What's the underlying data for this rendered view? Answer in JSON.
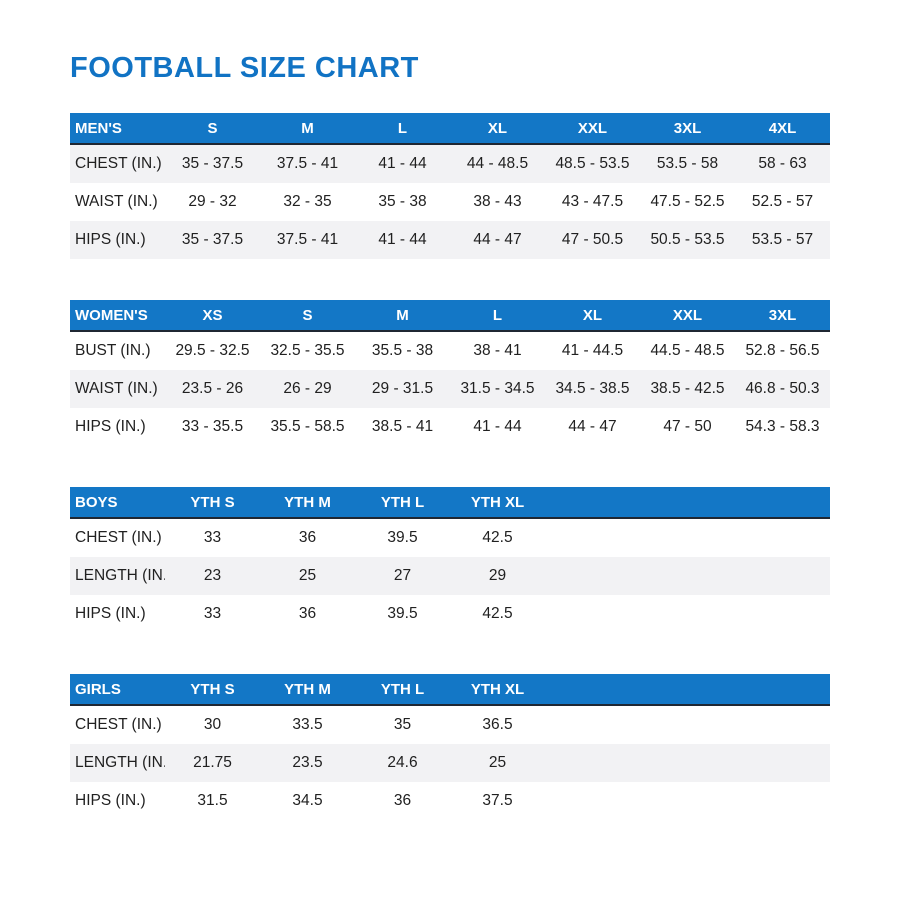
{
  "title": "FOOTBALL SIZE CHART",
  "colors": {
    "title_blue": "#1173c4",
    "header_blue": "#1377c6",
    "header_border_dark": "#1f2733",
    "shaded_row": "#f2f2f4",
    "text": "#212121"
  },
  "tables": [
    {
      "name": "MEN'S",
      "columns": [
        "S",
        "M",
        "L",
        "XL",
        "XXL",
        "3XL",
        "4XL"
      ],
      "rows": [
        {
          "label": "CHEST (IN.)",
          "shaded": true,
          "values": [
            "35 - 37.5",
            "37.5 - 41",
            "41 - 44",
            "44 - 48.5",
            "48.5 - 53.5",
            "53.5 - 58",
            "58 - 63"
          ]
        },
        {
          "label": "WAIST (IN.)",
          "shaded": false,
          "values": [
            "29 - 32",
            "32 - 35",
            "35 - 38",
            "38 - 43",
            "43 - 47.5",
            "47.5 - 52.5",
            "52.5 - 57"
          ]
        },
        {
          "label": "HIPS (IN.)",
          "shaded": true,
          "values": [
            "35 - 37.5",
            "37.5 - 41",
            "41 - 44",
            "44 - 47",
            "47 - 50.5",
            "50.5 - 53.5",
            "53.5 - 57"
          ]
        }
      ]
    },
    {
      "name": "WOMEN'S",
      "columns": [
        "XS",
        "S",
        "M",
        "L",
        "XL",
        "XXL",
        "3XL"
      ],
      "rows": [
        {
          "label": "BUST (IN.)",
          "shaded": false,
          "values": [
            "29.5 - 32.5",
            "32.5 - 35.5",
            "35.5 - 38",
            "38 - 41",
            "41 - 44.5",
            "44.5 - 48.5",
            "52.8 - 56.5"
          ]
        },
        {
          "label": "WAIST (IN.)",
          "shaded": true,
          "values": [
            "23.5 - 26",
            "26 - 29",
            "29 - 31.5",
            "31.5 - 34.5",
            "34.5 - 38.5",
            "38.5 - 42.5",
            "46.8 - 50.3"
          ]
        },
        {
          "label": "HIPS (IN.)",
          "shaded": false,
          "values": [
            "33 - 35.5",
            "35.5 - 58.5",
            "38.5 - 41",
            "41 - 44",
            "44 - 47",
            "47 - 50",
            "54.3 - 58.3"
          ]
        }
      ]
    },
    {
      "name": "BOYS",
      "columns": [
        "YTH S",
        "YTH M",
        "YTH L",
        "YTH XL"
      ],
      "rows": [
        {
          "label": "CHEST (IN.)",
          "shaded": false,
          "values": [
            "33",
            "36",
            "39.5",
            "42.5"
          ]
        },
        {
          "label": "LENGTH (IN.)",
          "shaded": true,
          "values": [
            "23",
            "25",
            "27",
            "29"
          ]
        },
        {
          "label": "HIPS (IN.)",
          "shaded": false,
          "values": [
            "33",
            "36",
            "39.5",
            "42.5"
          ]
        }
      ]
    },
    {
      "name": "GIRLS",
      "columns": [
        "YTH S",
        "YTH M",
        "YTH L",
        "YTH XL"
      ],
      "rows": [
        {
          "label": "CHEST (IN.)",
          "shaded": false,
          "values": [
            "30",
            "33.5",
            "35",
            "36.5"
          ]
        },
        {
          "label": "LENGTH (IN.)",
          "shaded": true,
          "values": [
            "21.75",
            "23.5",
            "24.6",
            "25"
          ]
        },
        {
          "label": "HIPS (IN.)",
          "shaded": false,
          "values": [
            "31.5",
            "34.5",
            "36",
            "37.5"
          ]
        }
      ]
    }
  ]
}
